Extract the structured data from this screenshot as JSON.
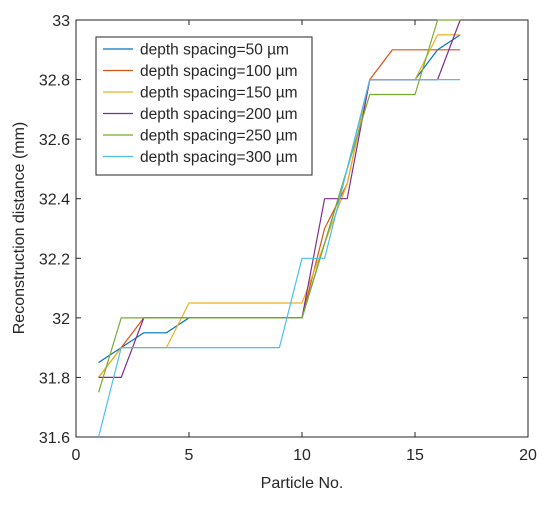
{
  "chart_data": {
    "type": "line",
    "title": "",
    "xlabel": "Particle No.",
    "ylabel": "Reconstruction distance (mm)",
    "xlim": [
      0,
      20
    ],
    "ylim": [
      31.6,
      33
    ],
    "xticks": [
      0,
      5,
      10,
      15,
      20
    ],
    "xtick_labels": [
      "0",
      "5",
      "10",
      "15",
      "20"
    ],
    "yticks": [
      31.6,
      31.8,
      32,
      32.2,
      32.4,
      32.6,
      32.8,
      33
    ],
    "ytick_labels": [
      "31.6",
      "31.8",
      "32",
      "32.2",
      "32.4",
      "32.6",
      "32.8",
      "33"
    ],
    "grid": false,
    "legend_position": "top-left",
    "series": [
      {
        "name": "depth spacing=50 µm",
        "color": "#0072BD",
        "x": [
          1,
          2,
          3,
          4,
          5,
          6,
          7,
          8,
          9,
          10,
          11,
          12,
          13,
          14,
          15,
          16,
          17
        ],
        "y": [
          31.85,
          31.9,
          31.95,
          31.95,
          32.0,
          32.0,
          32.0,
          32.0,
          32.0,
          32.0,
          32.25,
          32.5,
          32.8,
          32.8,
          32.8,
          32.9,
          32.95
        ]
      },
      {
        "name": "depth spacing=100 µm",
        "color": "#D95319",
        "x": [
          1,
          2,
          3,
          4,
          5,
          6,
          7,
          8,
          9,
          10,
          11,
          12,
          13,
          14,
          15,
          16,
          17
        ],
        "y": [
          31.8,
          31.9,
          32.0,
          32.0,
          32.0,
          32.0,
          32.0,
          32.0,
          32.0,
          32.0,
          32.3,
          32.45,
          32.8,
          32.9,
          32.9,
          32.9,
          32.9
        ]
      },
      {
        "name": "depth spacing=150 µm",
        "color": "#EDB120",
        "x": [
          1,
          2,
          3,
          4,
          5,
          6,
          7,
          8,
          9,
          10,
          11,
          12,
          13,
          14,
          15,
          16,
          17
        ],
        "y": [
          31.8,
          31.9,
          31.9,
          31.9,
          32.05,
          32.05,
          32.05,
          32.05,
          32.05,
          32.05,
          32.25,
          32.45,
          32.8,
          32.8,
          32.8,
          32.95,
          32.95
        ]
      },
      {
        "name": "depth spacing=200 µm",
        "color": "#7E2F8E",
        "x": [
          1,
          2,
          3,
          4,
          5,
          6,
          7,
          8,
          9,
          10,
          11,
          12,
          13,
          14,
          15,
          16,
          17
        ],
        "y": [
          31.8,
          31.8,
          32.0,
          32.0,
          32.0,
          32.0,
          32.0,
          32.0,
          32.0,
          32.0,
          32.4,
          32.4,
          32.8,
          32.8,
          32.8,
          32.8,
          33.0
        ]
      },
      {
        "name": "depth spacing=250 µm",
        "color": "#77AC30",
        "x": [
          1,
          2,
          3,
          4,
          5,
          6,
          7,
          8,
          9,
          10,
          11,
          12,
          13,
          14,
          15,
          16,
          17
        ],
        "y": [
          31.75,
          32.0,
          32.0,
          32.0,
          32.0,
          32.0,
          32.0,
          32.0,
          32.0,
          32.0,
          32.25,
          32.5,
          32.75,
          32.75,
          32.75,
          33.0,
          33.0
        ]
      },
      {
        "name": "depth spacing=300 µm",
        "color": "#4DBEEE",
        "x": [
          1,
          2,
          3,
          4,
          5,
          6,
          7,
          8,
          9,
          10,
          11,
          12,
          13,
          14,
          15,
          16,
          17
        ],
        "y": [
          31.6,
          31.9,
          31.9,
          31.9,
          31.9,
          31.9,
          31.9,
          31.9,
          31.9,
          32.2,
          32.2,
          32.5,
          32.8,
          32.8,
          32.8,
          32.8,
          32.8
        ]
      }
    ]
  }
}
